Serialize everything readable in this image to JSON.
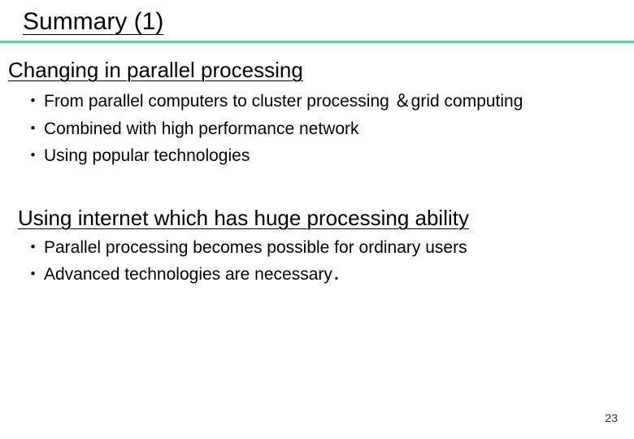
{
  "slide": {
    "title": "Summary (1)",
    "divider_color": "#5fc8b8",
    "section1": {
      "heading": "Changing in parallel processing",
      "bullets": [
        "From parallel computers to cluster processing ＆grid computing",
        "Combined with high performance network",
        "Using popular technologies"
      ]
    },
    "section2": {
      "heading": "Using internet which has huge processing ability",
      "bullets": [
        "Parallel processing becomes possible for ordinary users",
        "Advanced technologies are necessary．"
      ]
    },
    "page_number": "23"
  }
}
